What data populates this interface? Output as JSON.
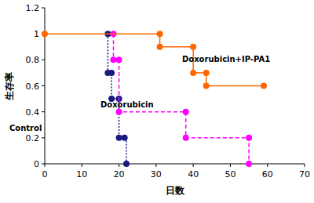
{
  "chart_data": {
    "type": "line",
    "x_label": "日数",
    "y_label": "生存率",
    "xlim": [
      0,
      70
    ],
    "xticks": [
      0,
      10,
      20,
      30,
      40,
      50,
      60,
      70
    ],
    "ylim": [
      0,
      1.2
    ],
    "yticks": [
      0,
      0.2,
      0.4,
      0.6,
      0.8,
      1,
      1.2
    ],
    "grid": false,
    "marker": "circle",
    "series": [
      {
        "name": "Control",
        "color": "#1a1a80",
        "line_style": "dotted",
        "x": [
          17,
          17,
          18,
          18,
          20,
          20,
          21.5,
          22
        ],
        "values": [
          1,
          0.7,
          0.7,
          0.5,
          0.5,
          0.2,
          0.2,
          0
        ]
      },
      {
        "name": "Doxorubicin",
        "color": "#ff00ff",
        "line_style": "dashed",
        "x": [
          18.5,
          18.5,
          20,
          20,
          38,
          38,
          55,
          55
        ],
        "values": [
          1,
          0.8,
          0.8,
          0.4,
          0.4,
          0.2,
          0.2,
          0
        ]
      },
      {
        "name": "Doxorubicin+IP-PA1",
        "color": "#ff6600",
        "line_style": "solid",
        "x": [
          0,
          31,
          31,
          40,
          40,
          43.5,
          43.5,
          59
        ],
        "values": [
          1,
          1,
          0.9,
          0.9,
          0.7,
          0.7,
          0.6,
          0.6
        ]
      }
    ]
  }
}
